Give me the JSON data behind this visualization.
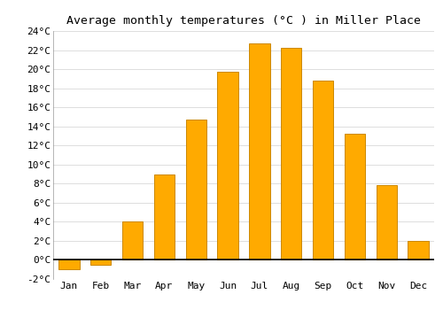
{
  "title": "Average monthly temperatures (°C ) in Miller Place",
  "months": [
    "Jan",
    "Feb",
    "Mar",
    "Apr",
    "May",
    "Jun",
    "Jul",
    "Aug",
    "Sep",
    "Oct",
    "Nov",
    "Dec"
  ],
  "values": [
    -1.0,
    -0.5,
    4.0,
    9.0,
    14.7,
    19.7,
    22.7,
    22.2,
    18.8,
    13.2,
    7.8,
    2.0
  ],
  "bar_color": "#FFAA00",
  "bar_edge_color": "#CC8800",
  "ylim": [
    -2,
    24
  ],
  "yticks": [
    -2,
    0,
    2,
    4,
    6,
    8,
    10,
    12,
    14,
    16,
    18,
    20,
    22,
    24
  ],
  "background_color": "#FFFFFF",
  "plot_bg_color": "#FFFFFF",
  "grid_color": "#DDDDDD",
  "title_fontsize": 9.5,
  "tick_fontsize": 8,
  "font_family": "monospace"
}
